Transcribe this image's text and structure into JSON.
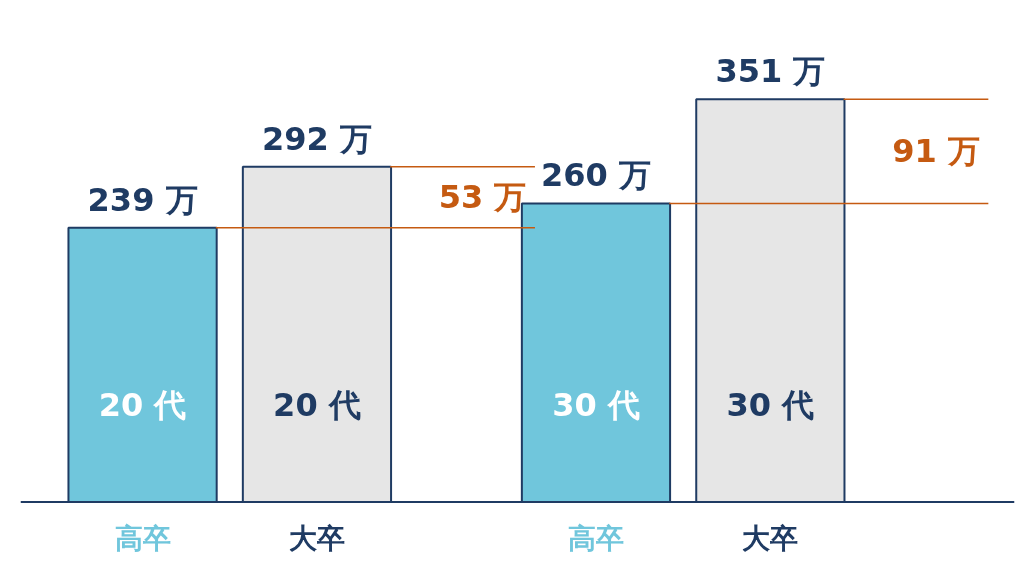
{
  "chart_data": {
    "type": "bar",
    "categories": [
      "高卒",
      "大卒",
      "高卒",
      "大卒"
    ],
    "values": [
      239,
      292,
      260,
      351
    ],
    "colors": [
      "#70c6dc",
      "#e6e6e6",
      "#70c6dc",
      "#e6e6e6"
    ],
    "data_labels": true,
    "value_labels": [
      "239 万",
      "292 万",
      "260 万",
      "351 万"
    ],
    "annotations": [
      "20 代",
      "20 代",
      "30 代",
      "30 代",
      "53 万",
      "91 万"
    ],
    "ref_lines": [
      {
        "axis": "y",
        "value": 239,
        "color": "#c55a11"
      },
      {
        "axis": "y",
        "value": 292,
        "color": "#c55a11"
      },
      {
        "axis": "y",
        "value": 260,
        "color": "#c55a11"
      },
      {
        "axis": "y",
        "value": 351,
        "color": "#c55a11"
      }
    ]
  }
}
